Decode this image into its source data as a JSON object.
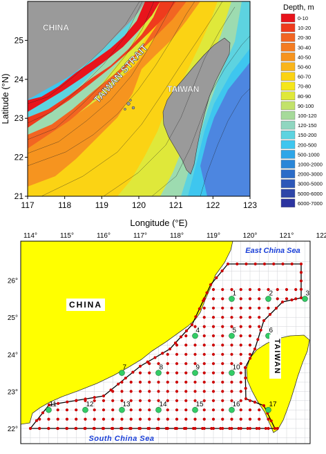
{
  "top_map": {
    "x_axis_label": "Longitude (°E)",
    "y_axis_label": "Latitude (°N)",
    "x_ticks": [
      "117",
      "118",
      "119",
      "120",
      "121",
      "122",
      "123"
    ],
    "y_ticks": [
      "21",
      "22",
      "23",
      "24",
      "25"
    ],
    "place_labels": {
      "china": "CHINA",
      "taiwan": "TAIWAN",
      "strait": "TAIWAN STRAIT"
    },
    "legend": {
      "title": "Depth, m",
      "entries": [
        {
          "label": "0-10",
          "color": "#e8141c"
        },
        {
          "label": "10-20",
          "color": "#ef3b1d"
        },
        {
          "label": "20-30",
          "color": "#f26522"
        },
        {
          "label": "30-40",
          "color": "#f47c22"
        },
        {
          "label": "40-50",
          "color": "#f6941f"
        },
        {
          "label": "50-60",
          "color": "#f9b51b"
        },
        {
          "label": "60-70",
          "color": "#fbd314"
        },
        {
          "label": "70-80",
          "color": "#f5e61a"
        },
        {
          "label": "80-90",
          "color": "#dfe83a"
        },
        {
          "label": "90-100",
          "color": "#c2e26a"
        },
        {
          "label": "100-120",
          "color": "#a6da9a"
        },
        {
          "label": "120-150",
          "color": "#8fd6c0"
        },
        {
          "label": "150-200",
          "color": "#5dd3e0"
        },
        {
          "label": "200-500",
          "color": "#3ec6ef"
        },
        {
          "label": "500-1000",
          "color": "#2ea6e8"
        },
        {
          "label": "1000-2000",
          "color": "#2a86d8"
        },
        {
          "label": "2000-3000",
          "color": "#2b6cc8"
        },
        {
          "label": "3000-5000",
          "color": "#2d57b8"
        },
        {
          "label": "5000-6000",
          "color": "#2e45a8"
        },
        {
          "label": "6000-7000",
          "color": "#2c34a0"
        }
      ]
    }
  },
  "bottom_map": {
    "x_ticks": [
      "114°",
      "115°",
      "116°",
      "117°",
      "118°",
      "119°",
      "120°",
      "121°",
      "122°"
    ],
    "y_ticks": [
      "26°",
      "25°",
      "24°",
      "23°",
      "22°"
    ],
    "labels": {
      "china": "CHINA",
      "taiwan": "TAIWAN",
      "east_china_sea": "East China Sea",
      "south_china_sea": "South China Sea"
    },
    "stations": [
      {
        "id": "1",
        "lon": 119.5,
        "lat": 25.5
      },
      {
        "id": "2",
        "lon": 120.5,
        "lat": 25.5
      },
      {
        "id": "3",
        "lon": 121.5,
        "lat": 25.5
      },
      {
        "id": "4",
        "lon": 118.5,
        "lat": 24.5
      },
      {
        "id": "5",
        "lon": 119.5,
        "lat": 24.5
      },
      {
        "id": "6",
        "lon": 120.5,
        "lat": 24.5
      },
      {
        "id": "7",
        "lon": 116.5,
        "lat": 23.5
      },
      {
        "id": "8",
        "lon": 117.5,
        "lat": 23.5
      },
      {
        "id": "9",
        "lon": 118.5,
        "lat": 23.5
      },
      {
        "id": "10",
        "lon": 119.5,
        "lat": 23.5
      },
      {
        "id": "11",
        "lon": 114.5,
        "lat": 22.5
      },
      {
        "id": "12",
        "lon": 115.5,
        "lat": 22.5
      },
      {
        "id": "13",
        "lon": 116.5,
        "lat": 22.5
      },
      {
        "id": "14",
        "lon": 117.5,
        "lat": 22.5
      },
      {
        "id": "15",
        "lon": 118.5,
        "lat": 22.5
      },
      {
        "id": "16",
        "lon": 119.5,
        "lat": 22.5
      },
      {
        "id": "17",
        "lon": 120.5,
        "lat": 22.5
      }
    ],
    "colors": {
      "land": "#ffff00",
      "grid_dot": "#cc0000",
      "station": "#33cc66",
      "sea_label": "#1a3fd8"
    }
  }
}
